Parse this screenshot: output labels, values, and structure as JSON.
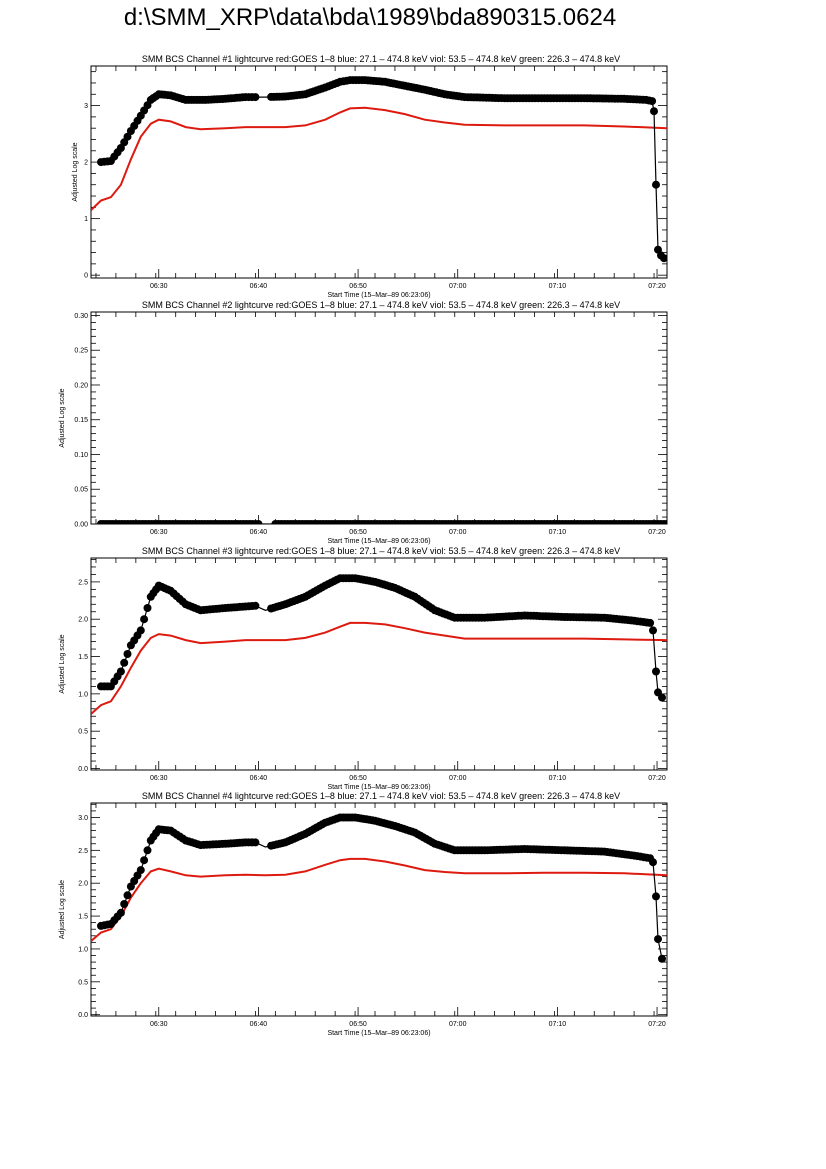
{
  "page": {
    "title": "d:\\SMM_XRP\\data\\bda\\1989\\bda890315.0624"
  },
  "colors": {
    "goes": "#dd1a0f",
    "bcs": "#000000",
    "axes": "#000000"
  },
  "chart_data": [
    {
      "type": "line",
      "title": "SMM BCS Channel #1 lightcurve  red:GOES 1–8  blue: 27.1 – 474.8 keV  viol: 53.5 – 474.8 keV  green: 226.3 – 474.8 keV",
      "xlabel": "Start Time (15–Mar–89 06:23:06)",
      "ylabel": "Adjusted Log scale",
      "xlim": [
        6.5,
        64.3
      ],
      "ylim": [
        -0.05,
        3.7
      ],
      "x_tick_labels": [
        "06:30",
        "06:40",
        "06:50",
        "07:00",
        "07:10",
        "07:20"
      ],
      "x_ticks": [
        13.3,
        23.3,
        33.3,
        43.3,
        53.3,
        63.3
      ],
      "y_ticks": [
        0,
        1,
        2,
        3
      ],
      "y_tick_labels": [
        "0",
        "1",
        "2",
        "3"
      ],
      "series": [
        {
          "name": "GOES 1–8",
          "points": [
            [
              6.5,
              1.15
            ],
            [
              7.5,
              1.32
            ],
            [
              8.5,
              1.38
            ],
            [
              9.5,
              1.6
            ],
            [
              10.5,
              2.05
            ],
            [
              11.5,
              2.45
            ],
            [
              12.5,
              2.68
            ],
            [
              13.3,
              2.75
            ],
            [
              14.5,
              2.72
            ],
            [
              16,
              2.62
            ],
            [
              17.5,
              2.58
            ],
            [
              20,
              2.6
            ],
            [
              22,
              2.62
            ],
            [
              24,
              2.62
            ],
            [
              26,
              2.62
            ],
            [
              28,
              2.65
            ],
            [
              30,
              2.75
            ],
            [
              31.5,
              2.88
            ],
            [
              32.5,
              2.95
            ],
            [
              34,
              2.96
            ],
            [
              36,
              2.92
            ],
            [
              38,
              2.85
            ],
            [
              40,
              2.75
            ],
            [
              42,
              2.7
            ],
            [
              44,
              2.66
            ],
            [
              48,
              2.65
            ],
            [
              52,
              2.65
            ],
            [
              56,
              2.65
            ],
            [
              60,
              2.63
            ],
            [
              64.3,
              2.6
            ]
          ]
        },
        {
          "name": "Channel #1",
          "points": [
            [
              7.5,
              2.0
            ],
            [
              8.5,
              2.02
            ],
            [
              9.5,
              2.25
            ],
            [
              10.5,
              2.55
            ],
            [
              11.5,
              2.82
            ],
            [
              12.5,
              3.1
            ],
            [
              13.3,
              3.2
            ],
            [
              14.5,
              3.18
            ],
            [
              16,
              3.1
            ],
            [
              18,
              3.1
            ],
            [
              20,
              3.12
            ],
            [
              22,
              3.15
            ],
            [
              23,
              3.15
            ],
            [
              24,
              3.15
            ],
            [
              26,
              3.16
            ],
            [
              28,
              3.2
            ],
            [
              30,
              3.32
            ],
            [
              31.5,
              3.42
            ],
            [
              32.5,
              3.45
            ],
            [
              34,
              3.45
            ],
            [
              36,
              3.42
            ],
            [
              38,
              3.35
            ],
            [
              40,
              3.28
            ],
            [
              42,
              3.2
            ],
            [
              44,
              3.15
            ],
            [
              48,
              3.13
            ],
            [
              52,
              3.13
            ],
            [
              56,
              3.13
            ],
            [
              60,
              3.12
            ],
            [
              62.2,
              3.1
            ],
            [
              62.8,
              3.08
            ],
            [
              63.0,
              2.9
            ],
            [
              63.2,
              1.6
            ],
            [
              63.4,
              0.45
            ],
            [
              63.7,
              0.35
            ],
            [
              64.0,
              0.3
            ]
          ]
        }
      ],
      "gaps": [
        [
          23.3,
          24.3
        ]
      ]
    },
    {
      "type": "line",
      "title": "SMM BCS Channel #2 lightcurve  red:GOES 1–8  blue: 27.1 – 474.8 keV  viol: 53.5 – 474.8 keV  green: 226.3 – 474.8 keV",
      "xlabel": "Start Time (15–Mar–89 06:23:06)",
      "ylabel": "Adjusted Log scale",
      "xlim": [
        6.5,
        64.3
      ],
      "ylim": [
        0,
        0.305
      ],
      "x_tick_labels": [
        "06:30",
        "06:40",
        "06:50",
        "07:00",
        "07:10",
        "07:20"
      ],
      "x_ticks": [
        13.3,
        23.3,
        33.3,
        43.3,
        53.3,
        63.3
      ],
      "y_ticks": [
        0,
        0.05,
        0.1,
        0.15,
        0.2,
        0.25,
        0.3
      ],
      "y_tick_labels": [
        "0.00",
        "0.05",
        "0.10",
        "0.15",
        "0.20",
        "0.25",
        "0.30"
      ],
      "series": [
        {
          "name": "Channel #2",
          "points": [
            [
              7.5,
              0.0
            ],
            [
              23.3,
              0.0
            ],
            [
              25,
              0.0
            ],
            [
              64.3,
              0.0
            ]
          ]
        }
      ],
      "gaps": [
        [
          23.3,
          25.0
        ]
      ]
    },
    {
      "type": "line",
      "title": "SMM BCS Channel #3 lightcurve  red:GOES 1–8  blue: 27.1 – 474.8 keV  viol: 53.5 – 474.8 keV  green: 226.3 – 474.8 keV",
      "xlabel": "Start Time (15–Mar–89 06:23:06)",
      "ylabel": "Adjusted Log scale",
      "xlim": [
        6.5,
        64.3
      ],
      "ylim": [
        -0.02,
        2.82
      ],
      "x_tick_labels": [
        "06:30",
        "06:40",
        "06:50",
        "07:00",
        "07:10",
        "07:20"
      ],
      "x_ticks": [
        13.3,
        23.3,
        33.3,
        43.3,
        53.3,
        63.3
      ],
      "y_ticks": [
        0,
        0.5,
        1,
        1.5,
        2,
        2.5
      ],
      "y_tick_labels": [
        "0.0",
        "0.5",
        "1.0",
        "1.5",
        "2.0",
        "2.5"
      ],
      "series": [
        {
          "name": "GOES 1–8",
          "points": [
            [
              6.5,
              0.73
            ],
            [
              7.5,
              0.85
            ],
            [
              8.5,
              0.9
            ],
            [
              9.5,
              1.1
            ],
            [
              10.5,
              1.35
            ],
            [
              11.5,
              1.58
            ],
            [
              12.5,
              1.75
            ],
            [
              13.3,
              1.8
            ],
            [
              14.5,
              1.78
            ],
            [
              16,
              1.72
            ],
            [
              17.5,
              1.68
            ],
            [
              20,
              1.7
            ],
            [
              22,
              1.72
            ],
            [
              24,
              1.72
            ],
            [
              26,
              1.72
            ],
            [
              28,
              1.75
            ],
            [
              30,
              1.82
            ],
            [
              31.5,
              1.9
            ],
            [
              32.5,
              1.95
            ],
            [
              34,
              1.95
            ],
            [
              36,
              1.93
            ],
            [
              38,
              1.88
            ],
            [
              40,
              1.82
            ],
            [
              42,
              1.78
            ],
            [
              44,
              1.74
            ],
            [
              48,
              1.74
            ],
            [
              52,
              1.74
            ],
            [
              56,
              1.74
            ],
            [
              60,
              1.73
            ],
            [
              64.3,
              1.72
            ]
          ]
        },
        {
          "name": "Channel #3",
          "points": [
            [
              7.5,
              1.1
            ],
            [
              8.5,
              1.1
            ],
            [
              9.5,
              1.3
            ],
            [
              10.5,
              1.65
            ],
            [
              11.5,
              1.85
            ],
            [
              12.5,
              2.3
            ],
            [
              13.3,
              2.45
            ],
            [
              14.5,
              2.38
            ],
            [
              16,
              2.2
            ],
            [
              17.5,
              2.12
            ],
            [
              20,
              2.15
            ],
            [
              22,
              2.17
            ],
            [
              23,
              2.18
            ],
            [
              24,
              2.12
            ],
            [
              26,
              2.2
            ],
            [
              28,
              2.3
            ],
            [
              30,
              2.45
            ],
            [
              31.5,
              2.55
            ],
            [
              33,
              2.55
            ],
            [
              35,
              2.5
            ],
            [
              37,
              2.42
            ],
            [
              39,
              2.3
            ],
            [
              41,
              2.12
            ],
            [
              43,
              2.02
            ],
            [
              46,
              2.02
            ],
            [
              50,
              2.05
            ],
            [
              54,
              2.03
            ],
            [
              58,
              2.02
            ],
            [
              61,
              1.98
            ],
            [
              62.6,
              1.95
            ],
            [
              62.9,
              1.85
            ],
            [
              63.2,
              1.3
            ],
            [
              63.4,
              1.02
            ],
            [
              63.8,
              0.95
            ]
          ]
        }
      ],
      "gaps": [
        [
          23.3,
          24.3
        ]
      ]
    },
    {
      "type": "line",
      "title": "SMM BCS Channel #4 lightcurve  red:GOES 1–8  blue: 27.1 – 474.8 keV  viol: 53.5 – 474.8 keV  green: 226.3 – 474.8 keV",
      "xlabel": "Start Time (15–Mar–89 06:23:06)",
      "ylabel": "Adjusted Log scale",
      "xlim": [
        6.5,
        64.3
      ],
      "ylim": [
        -0.02,
        3.22
      ],
      "x_tick_labels": [
        "06:30",
        "06:40",
        "06:50",
        "07:00",
        "07:10",
        "07:20"
      ],
      "x_ticks": [
        13.3,
        23.3,
        33.3,
        43.3,
        53.3,
        63.3
      ],
      "y_ticks": [
        0,
        0.5,
        1,
        1.5,
        2,
        2.5,
        3
      ],
      "y_tick_labels": [
        "0.0",
        "0.5",
        "1.0",
        "1.5",
        "2.0",
        "2.5",
        "3.0"
      ],
      "series": [
        {
          "name": "GOES 1–8",
          "points": [
            [
              6.5,
              1.12
            ],
            [
              7.5,
              1.25
            ],
            [
              8.5,
              1.3
            ],
            [
              9.5,
              1.5
            ],
            [
              10.5,
              1.78
            ],
            [
              11.5,
              2.0
            ],
            [
              12.5,
              2.18
            ],
            [
              13.3,
              2.22
            ],
            [
              14.5,
              2.18
            ],
            [
              16,
              2.12
            ],
            [
              17.5,
              2.1
            ],
            [
              20,
              2.12
            ],
            [
              22,
              2.13
            ],
            [
              24,
              2.12
            ],
            [
              26,
              2.13
            ],
            [
              28,
              2.18
            ],
            [
              30,
              2.28
            ],
            [
              31.5,
              2.35
            ],
            [
              32.5,
              2.37
            ],
            [
              34,
              2.37
            ],
            [
              36,
              2.33
            ],
            [
              38,
              2.27
            ],
            [
              40,
              2.2
            ],
            [
              42,
              2.17
            ],
            [
              44,
              2.15
            ],
            [
              48,
              2.15
            ],
            [
              52,
              2.16
            ],
            [
              56,
              2.16
            ],
            [
              60,
              2.15
            ],
            [
              64.3,
              2.12
            ]
          ]
        },
        {
          "name": "Channel #4",
          "points": [
            [
              7.5,
              1.35
            ],
            [
              8.5,
              1.38
            ],
            [
              9.5,
              1.55
            ],
            [
              10.5,
              1.95
            ],
            [
              11.5,
              2.2
            ],
            [
              12.5,
              2.65
            ],
            [
              13.3,
              2.82
            ],
            [
              14.5,
              2.8
            ],
            [
              16,
              2.65
            ],
            [
              17.5,
              2.58
            ],
            [
              20,
              2.6
            ],
            [
              22,
              2.62
            ],
            [
              23,
              2.62
            ],
            [
              24,
              2.55
            ],
            [
              26,
              2.62
            ],
            [
              28,
              2.75
            ],
            [
              30,
              2.92
            ],
            [
              31.5,
              3.0
            ],
            [
              33,
              3.0
            ],
            [
              35,
              2.95
            ],
            [
              37,
              2.87
            ],
            [
              39,
              2.77
            ],
            [
              41,
              2.6
            ],
            [
              43,
              2.5
            ],
            [
              46,
              2.5
            ],
            [
              50,
              2.52
            ],
            [
              54,
              2.5
            ],
            [
              58,
              2.48
            ],
            [
              61,
              2.42
            ],
            [
              62.6,
              2.38
            ],
            [
              62.9,
              2.32
            ],
            [
              63.2,
              1.8
            ],
            [
              63.4,
              1.15
            ],
            [
              63.8,
              0.85
            ]
          ]
        }
      ],
      "gaps": [
        [
          23.3,
          24.3
        ]
      ]
    }
  ]
}
